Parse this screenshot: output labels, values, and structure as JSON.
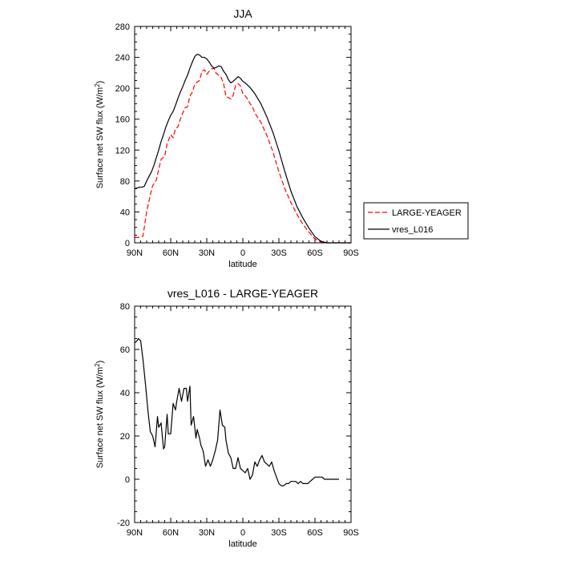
{
  "chart_data": [
    {
      "type": "line",
      "title": "JJA",
      "xlabel": "latitude",
      "ylabel": "Surface net SW flux (W/m²)",
      "xlim": [
        90,
        -90
      ],
      "ylim": [
        0,
        280
      ],
      "x_ticks": [
        90,
        60,
        30,
        0,
        -30,
        -60,
        -90
      ],
      "x_tick_labels": [
        "90N",
        "60N",
        "30N",
        "0",
        "30S",
        "60S",
        "90S"
      ],
      "y_ticks": [
        0,
        40,
        80,
        120,
        160,
        200,
        240,
        280
      ],
      "y_tick_labels": [
        "0",
        "40",
        "80",
        "120",
        "160",
        "200",
        "240",
        "280"
      ],
      "legend": {
        "position": "right",
        "entries": [
          "LARGE-YEAGER",
          "vres_L016"
        ]
      },
      "series": [
        {
          "name": "LARGE-YEAGER",
          "color": "#ff0000",
          "dash": "dashed",
          "x": [
            90,
            85,
            83,
            80,
            77,
            75,
            72,
            70,
            68,
            65,
            63,
            60,
            58,
            56,
            54,
            52,
            50,
            48,
            46,
            44,
            42,
            40,
            38,
            36,
            34,
            32,
            30,
            28,
            26,
            24,
            22,
            20,
            18,
            16,
            14,
            12,
            10,
            8,
            6,
            4,
            2,
            0,
            -2,
            -4,
            -6,
            -8,
            -10,
            -15,
            -20,
            -25,
            -30,
            -35,
            -40,
            -45,
            -50,
            -55,
            -60,
            -65,
            -70,
            -75,
            -80,
            -85,
            -90
          ],
          "values": [
            7,
            7,
            9,
            40,
            62,
            74,
            81,
            95,
            108,
            112,
            128,
            140,
            136,
            148,
            150,
            160,
            168,
            175,
            176,
            190,
            195,
            205,
            208,
            210,
            222,
            224,
            218,
            222,
            225,
            226,
            219,
            217,
            214,
            206,
            189,
            188,
            186,
            191,
            204,
            206,
            203,
            193,
            190,
            186,
            180,
            176,
            168,
            156,
            139,
            118,
            92,
            70,
            52,
            37,
            24,
            14,
            5,
            1,
            0,
            0,
            0,
            0,
            0
          ]
        },
        {
          "name": "vres_L016",
          "color": "#000000",
          "dash": "solid",
          "x": [
            90,
            88,
            86,
            84,
            82,
            80,
            78,
            76,
            74,
            72,
            70,
            68,
            66,
            64,
            62,
            60,
            58,
            56,
            54,
            52,
            50,
            48,
            46,
            44,
            42,
            40,
            38,
            36,
            34,
            32,
            30,
            28,
            26,
            24,
            22,
            20,
            18,
            16,
            14,
            12,
            10,
            8,
            6,
            4,
            2,
            0,
            -2,
            -4,
            -6,
            -8,
            -10,
            -15,
            -20,
            -25,
            -30,
            -35,
            -40,
            -45,
            -50,
            -55,
            -60,
            -65,
            -70,
            -75,
            -80,
            -85,
            -90
          ],
          "values": [
            70,
            71,
            72,
            72,
            73,
            80,
            86,
            92,
            100,
            110,
            120,
            131,
            140,
            150,
            158,
            165,
            170,
            178,
            187,
            195,
            202,
            210,
            217,
            226,
            234,
            241,
            244,
            243,
            240,
            240,
            238,
            234,
            229,
            226,
            227,
            229,
            228,
            222,
            218,
            211,
            207,
            209,
            212,
            215,
            213,
            209,
            207,
            204,
            201,
            197,
            193,
            180,
            163,
            143,
            119,
            92,
            67,
            47,
            32,
            19,
            8,
            2,
            0,
            0,
            0,
            0,
            0
          ]
        }
      ]
    },
    {
      "type": "line",
      "title": "vres_L016 - LARGE-YEAGER",
      "xlabel": "latitude",
      "ylabel": "Surface net SW flux (W/m²)",
      "xlim": [
        90,
        -90
      ],
      "ylim": [
        -20,
        80
      ],
      "x_ticks": [
        90,
        60,
        30,
        0,
        -30,
        -60,
        -90
      ],
      "x_tick_labels": [
        "90N",
        "60N",
        "30N",
        "0",
        "30S",
        "60S",
        "90S"
      ],
      "y_ticks": [
        -20,
        0,
        20,
        40,
        60,
        80
      ],
      "y_tick_labels": [
        "-20",
        "0",
        "20",
        "40",
        "60",
        "80"
      ],
      "series": [
        {
          "name": "vres_L016 - LARGE-YEAGER",
          "color": "#000000",
          "dash": "solid",
          "x": [
            90,
            88,
            87,
            85,
            83,
            81,
            79,
            77,
            75,
            73,
            71,
            70,
            68,
            66,
            65,
            63,
            62,
            60,
            58,
            56,
            55,
            53,
            51,
            49,
            47,
            46,
            44,
            43,
            41,
            39,
            38,
            36,
            35,
            33,
            31,
            29,
            27,
            25,
            23,
            21,
            19,
            17,
            15,
            14,
            12,
            10,
            8,
            6,
            4,
            2,
            0,
            -2,
            -4,
            -6,
            -8,
            -10,
            -12,
            -14,
            -16,
            -18,
            -20,
            -22,
            -24,
            -26,
            -28,
            -30,
            -32,
            -34,
            -36,
            -38,
            -40,
            -42,
            -44,
            -46,
            -48,
            -50,
            -52,
            -54,
            -56,
            -58,
            -60,
            -62,
            -64,
            -66,
            -68,
            -70,
            -72,
            -74,
            -76,
            -78,
            -80
          ],
          "values": [
            63,
            64,
            65,
            64,
            55,
            44,
            32,
            22,
            20,
            15,
            29,
            24,
            26,
            14,
            15,
            30,
            21,
            21,
            35,
            32,
            36,
            42,
            36,
            42,
            42,
            36,
            43,
            25,
            29,
            19,
            23,
            19,
            16,
            13,
            6,
            9,
            6,
            9,
            13,
            18,
            32,
            25,
            24,
            18,
            12,
            10,
            5,
            5,
            10,
            5,
            4,
            3,
            5,
            0,
            2,
            8,
            6,
            9,
            11,
            8,
            7,
            6,
            8,
            4,
            1,
            -2,
            -3,
            -3,
            -2,
            -2,
            -1,
            -1,
            -1,
            -2,
            -1,
            -2,
            -2,
            -2,
            -1,
            0,
            1,
            1,
            1,
            1,
            0,
            0,
            0,
            0,
            0,
            0,
            0
          ]
        }
      ]
    }
  ]
}
